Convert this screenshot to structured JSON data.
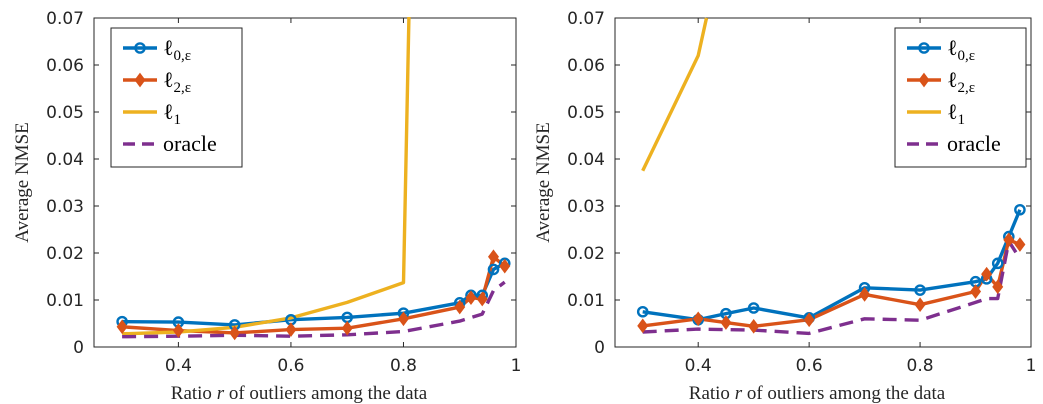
{
  "chart_data": [
    {
      "type": "line",
      "xlabel": "Ratio r of outliers among the data",
      "ylabel": "Average NMSE",
      "xlim": [
        0.25,
        1.0
      ],
      "ylim": [
        0,
        0.07
      ],
      "xticks": [
        0.4,
        0.6,
        0.8,
        1
      ],
      "xtick_labels": [
        "0.4",
        "0.6",
        "0.8",
        "1"
      ],
      "yticks": [
        0,
        0.01,
        0.02,
        0.03,
        0.04,
        0.05,
        0.06,
        0.07
      ],
      "ytick_labels": [
        "0",
        "0.01",
        "0.02",
        "0.03",
        "0.04",
        "0.05",
        "0.06",
        "0.07"
      ],
      "legend_position": "top-left",
      "series": [
        {
          "name": "ℓ0,ε",
          "color": "#0072BD",
          "marker": "circle",
          "dash": "solid",
          "x": [
            0.3,
            0.4,
            0.5,
            0.6,
            0.7,
            0.8,
            0.9,
            0.92,
            0.94,
            0.96,
            0.98
          ],
          "y": [
            0.0054,
            0.0053,
            0.0047,
            0.0058,
            0.0063,
            0.0072,
            0.0094,
            0.011,
            0.011,
            0.0165,
            0.0178
          ]
        },
        {
          "name": "ℓ2,ε",
          "color": "#D95319",
          "marker": "diamond",
          "dash": "solid",
          "x": [
            0.3,
            0.4,
            0.5,
            0.6,
            0.7,
            0.8,
            0.9,
            0.92,
            0.94,
            0.96,
            0.98
          ],
          "y": [
            0.0043,
            0.0035,
            0.003,
            0.0037,
            0.004,
            0.006,
            0.0085,
            0.0105,
            0.0102,
            0.0192,
            0.0172
          ]
        },
        {
          "name": "ℓ1",
          "color": "#EDB120",
          "marker": "none",
          "dash": "solid",
          "x": [
            0.3,
            0.4,
            0.5,
            0.6,
            0.7,
            0.8,
            0.81
          ],
          "y": [
            0.0028,
            0.0032,
            0.0042,
            0.0062,
            0.0095,
            0.0137,
            0.072
          ]
        },
        {
          "name": "oracle",
          "color": "#7E2F8E",
          "marker": "none",
          "dash": "dashed",
          "x": [
            0.3,
            0.4,
            0.5,
            0.6,
            0.7,
            0.8,
            0.9,
            0.94,
            0.96,
            0.98
          ],
          "y": [
            0.0022,
            0.0023,
            0.0025,
            0.0023,
            0.0026,
            0.0033,
            0.0055,
            0.007,
            0.012,
            0.0138
          ]
        }
      ]
    },
    {
      "type": "line",
      "xlabel": "Ratio r of outliers among the data",
      "ylabel": "Average NMSE",
      "xlim": [
        0.25,
        1.0
      ],
      "ylim": [
        0,
        0.07
      ],
      "xticks": [
        0.4,
        0.6,
        0.8,
        1
      ],
      "xtick_labels": [
        "0.4",
        "0.6",
        "0.8",
        "1"
      ],
      "yticks": [
        0,
        0.01,
        0.02,
        0.03,
        0.04,
        0.05,
        0.06,
        0.07
      ],
      "ytick_labels": [
        "0",
        "0.01",
        "0.02",
        "0.03",
        "0.04",
        "0.05",
        "0.06",
        "0.07"
      ],
      "legend_position": "top-right",
      "series": [
        {
          "name": "ℓ0,ε",
          "color": "#0072BD",
          "marker": "circle",
          "dash": "solid",
          "x": [
            0.3,
            0.4,
            0.45,
            0.5,
            0.6,
            0.7,
            0.8,
            0.9,
            0.92,
            0.94,
            0.96,
            0.98
          ],
          "y": [
            0.0075,
            0.0058,
            0.0071,
            0.0083,
            0.0062,
            0.0126,
            0.0121,
            0.0139,
            0.0145,
            0.0178,
            0.0235,
            0.0292
          ]
        },
        {
          "name": "ℓ2,ε",
          "color": "#D95319",
          "marker": "diamond",
          "dash": "solid",
          "x": [
            0.3,
            0.4,
            0.45,
            0.5,
            0.6,
            0.7,
            0.8,
            0.9,
            0.92,
            0.94,
            0.96,
            0.98
          ],
          "y": [
            0.0045,
            0.006,
            0.0052,
            0.0044,
            0.0058,
            0.0112,
            0.009,
            0.0118,
            0.0155,
            0.0128,
            0.0228,
            0.0218
          ]
        },
        {
          "name": "ℓ1",
          "color": "#EDB120",
          "marker": "none",
          "dash": "solid",
          "x": [
            0.3,
            0.4,
            0.415
          ],
          "y": [
            0.0375,
            0.062,
            0.07
          ]
        },
        {
          "name": "oracle",
          "color": "#7E2F8E",
          "marker": "none",
          "dash": "dashed",
          "x": [
            0.3,
            0.4,
            0.5,
            0.6,
            0.7,
            0.8,
            0.9,
            0.92,
            0.94,
            0.96,
            0.98
          ],
          "y": [
            0.0032,
            0.0038,
            0.0036,
            0.0029,
            0.006,
            0.0057,
            0.0095,
            0.0103,
            0.0103,
            0.0225,
            0.0188
          ]
        }
      ]
    }
  ]
}
